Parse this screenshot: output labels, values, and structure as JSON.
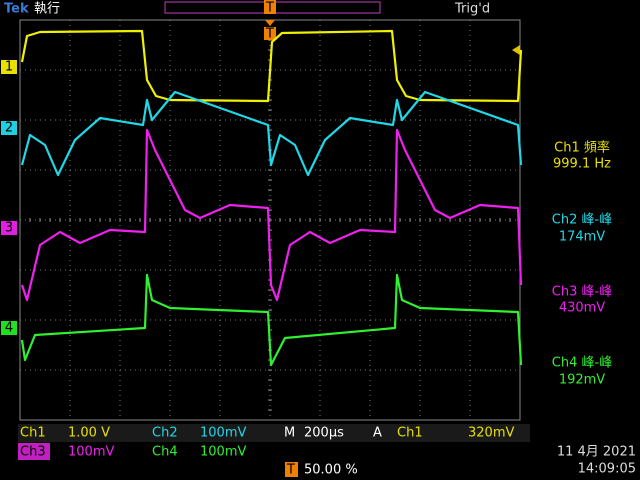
{
  "header": {
    "brand": "Tek",
    "status": "執行",
    "trigger_status": "Trig'd",
    "trigger_marker": "T"
  },
  "channel_markers": [
    "1",
    "2",
    "3",
    "4"
  ],
  "measurements": [
    {
      "label": "Ch1 頻率",
      "value": "999.1 Hz"
    },
    {
      "label": "Ch2 峰-峰",
      "value": "174mV"
    },
    {
      "label": "Ch3 峰-峰",
      "value": "430mV"
    },
    {
      "label": "Ch4 峰-峰",
      "value": "192mV"
    }
  ],
  "settings": {
    "row1": [
      {
        "channel": "Ch1",
        "scale": "1.00 V"
      },
      {
        "channel": "Ch2",
        "scale": "100mV"
      }
    ],
    "row2": [
      {
        "channel": "Ch3",
        "scale": "100mV"
      },
      {
        "channel": "Ch4",
        "scale": "100mV"
      }
    ],
    "timebase_label": "M",
    "timebase": "200µs",
    "trigger_mode": "A",
    "trigger_source": "Ch1",
    "trigger_level": "320mV",
    "trigger_position_marker": "T",
    "trigger_position": "50.00 %"
  },
  "date": "11 4月  2021",
  "time": "14:09:05"
}
